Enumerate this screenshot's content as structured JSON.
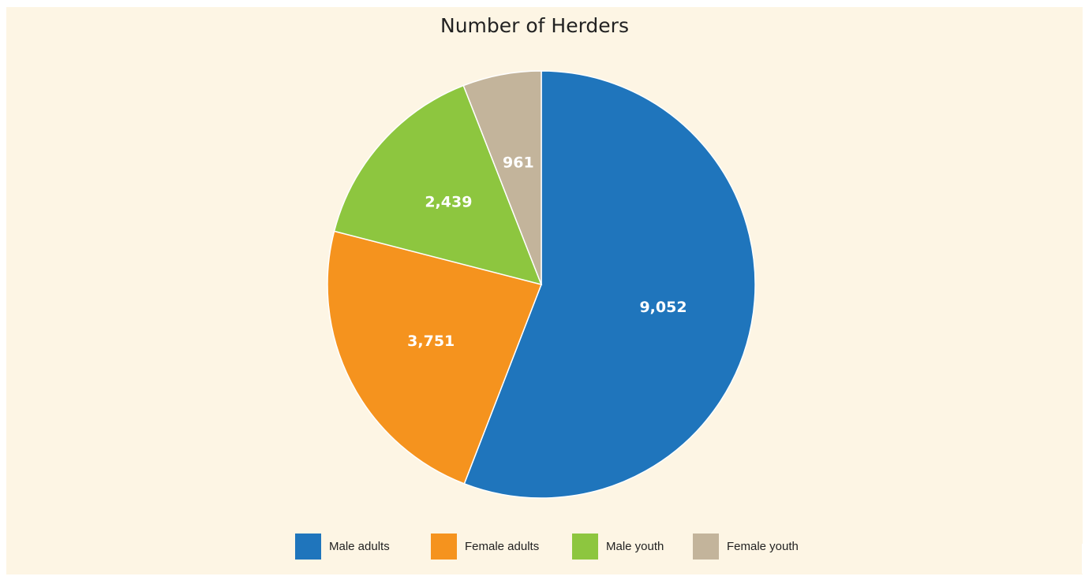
{
  "chart_data": {
    "type": "pie",
    "title": "Number of Herders",
    "slices": [
      {
        "label": "Male adults",
        "value": 9052,
        "display": "9,052",
        "color": "#1f75bc"
      },
      {
        "label": "Female adults",
        "value": 3751,
        "display": "3,751",
        "color": "#f5931e"
      },
      {
        "label": "Male youth",
        "value": 2439,
        "display": "2,439",
        "color": "#8dc63f"
      },
      {
        "label": "Female youth",
        "value": 961,
        "display": "961",
        "color": "#c3b49b"
      }
    ],
    "start_at": "top",
    "direction": "clockwise",
    "legend_position": "bottom"
  },
  "colors": {
    "background": "#fdf5e4",
    "slice_border": "#ffffff"
  }
}
